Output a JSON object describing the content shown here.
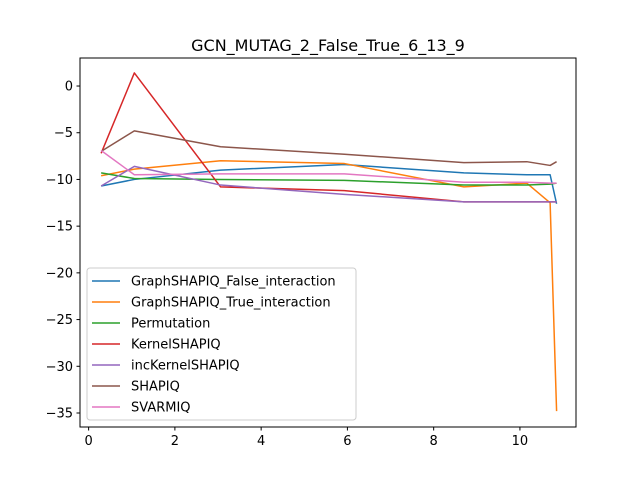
{
  "chart_data": {
    "type": "line",
    "title": "GCN_MUTAG_2_False_True_6_13_9",
    "xlabel": "",
    "ylabel": "",
    "xlim": [
      -0.2,
      11.3
    ],
    "ylim": [
      -36.5,
      3.0
    ],
    "xticks": [
      0,
      2,
      4,
      6,
      8,
      10
    ],
    "yticks": [
      0,
      -5,
      -10,
      -15,
      -20,
      -25,
      -30,
      -35
    ],
    "xtick_labels": [
      "0",
      "2",
      "4",
      "6",
      "8",
      "10"
    ],
    "ytick_labels": [
      "0",
      "−5",
      "−10",
      "−15",
      "−20",
      "−25",
      "−30",
      "−35"
    ],
    "grid": false,
    "legend_position": "lower-left",
    "series": [
      {
        "name": "GraphSHAPIQ_False_interaction",
        "color": "#1f77b4",
        "x": [
          0.29,
          1.06,
          3.06,
          5.93,
          8.7,
          10.16,
          10.7,
          10.85
        ],
        "y": [
          -10.7,
          -10.0,
          -9.0,
          -8.4,
          -9.3,
          -9.5,
          -9.5,
          -12.6
        ]
      },
      {
        "name": "GraphSHAPIQ_True_interaction",
        "color": "#ff7f0e",
        "x": [
          0.29,
          1.06,
          3.06,
          5.93,
          8.7,
          10.16,
          10.7,
          10.85
        ],
        "y": [
          -9.6,
          -8.9,
          -8.0,
          -8.3,
          -10.8,
          -10.4,
          -12.5,
          -34.8
        ]
      },
      {
        "name": "Permutation",
        "color": "#2ca02c",
        "x": [
          0.29,
          1.06,
          3.06,
          5.93,
          8.7,
          10.16,
          10.7,
          10.85
        ],
        "y": [
          -9.3,
          -9.9,
          -10.0,
          -10.1,
          -10.6,
          -10.6,
          -10.5,
          -10.4
        ]
      },
      {
        "name": "KernelSHAPIQ",
        "color": "#d62728",
        "x": [
          0.29,
          1.06,
          3.06,
          5.93,
          8.7,
          10.16,
          10.7,
          10.85
        ],
        "y": [
          -7.2,
          1.4,
          -10.8,
          -11.2,
          -12.4,
          -12.4,
          -12.4,
          -12.4
        ]
      },
      {
        "name": "incKernelSHAPIQ",
        "color": "#9467bd",
        "x": [
          0.29,
          1.06,
          3.06,
          5.93,
          8.7,
          10.16,
          10.7,
          10.85
        ],
        "y": [
          -10.7,
          -8.6,
          -10.6,
          -11.6,
          -12.4,
          -12.4,
          -12.4,
          -12.4
        ]
      },
      {
        "name": "SHAPIQ",
        "color": "#8c564b",
        "x": [
          0.29,
          1.06,
          3.06,
          5.93,
          8.7,
          10.16,
          10.7,
          10.85
        ],
        "y": [
          -7.0,
          -4.8,
          -6.5,
          -7.3,
          -8.2,
          -8.1,
          -8.5,
          -8.1
        ]
      },
      {
        "name": "SVARMIQ",
        "color": "#e377c2",
        "x": [
          0.29,
          1.06,
          3.06,
          5.93,
          8.7,
          10.16,
          10.7,
          10.85
        ],
        "y": [
          -6.9,
          -9.5,
          -9.4,
          -9.4,
          -10.3,
          -10.3,
          -10.4,
          -10.4
        ]
      }
    ]
  }
}
